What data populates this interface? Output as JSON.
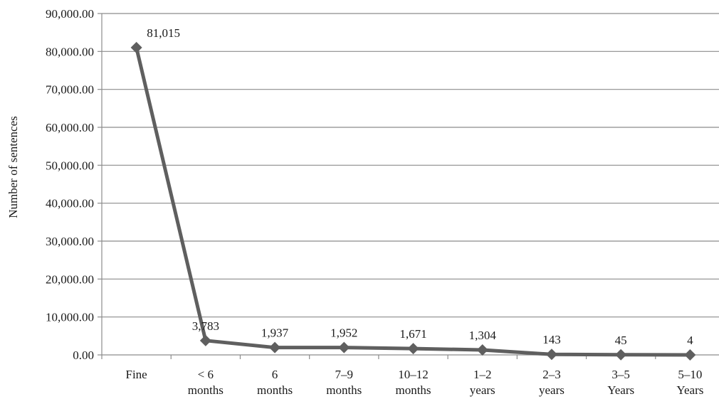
{
  "chart_data": {
    "type": "line",
    "title": "",
    "xlabel": "",
    "ylabel": "Number of sentences",
    "ylim": [
      0,
      90000
    ],
    "y_tick_step": 10000,
    "y_tick_labels": [
      "0.00",
      "10,000.00",
      "20,000.00",
      "30,000.00",
      "40,000.00",
      "50,000.00",
      "60,000.00",
      "70,000.00",
      "80,000.00",
      "90,000.00"
    ],
    "categories": [
      [
        "Fine"
      ],
      [
        "< 6",
        "months"
      ],
      [
        "6",
        "months"
      ],
      [
        "7–9",
        "months"
      ],
      [
        "10–12",
        "months"
      ],
      [
        "1–2",
        "years"
      ],
      [
        "2–3",
        "years"
      ],
      [
        "3–5",
        "Years"
      ],
      [
        "5–10",
        "Years"
      ]
    ],
    "series": [
      {
        "values": [
          81015,
          3783,
          1937,
          1952,
          1671,
          1304,
          143,
          45,
          4
        ],
        "data_labels": [
          "81,015",
          "3,783",
          "1,937",
          "1,952",
          "1,671",
          "1,304",
          "143",
          "45",
          "4"
        ]
      }
    ],
    "grid": true,
    "legend": "none",
    "colors": {
      "line": "#5f5f5f",
      "marker": "#5f5f5f",
      "grid": "#8c8c8c",
      "axis": "#8c8c8c"
    },
    "marker": "diamond"
  }
}
